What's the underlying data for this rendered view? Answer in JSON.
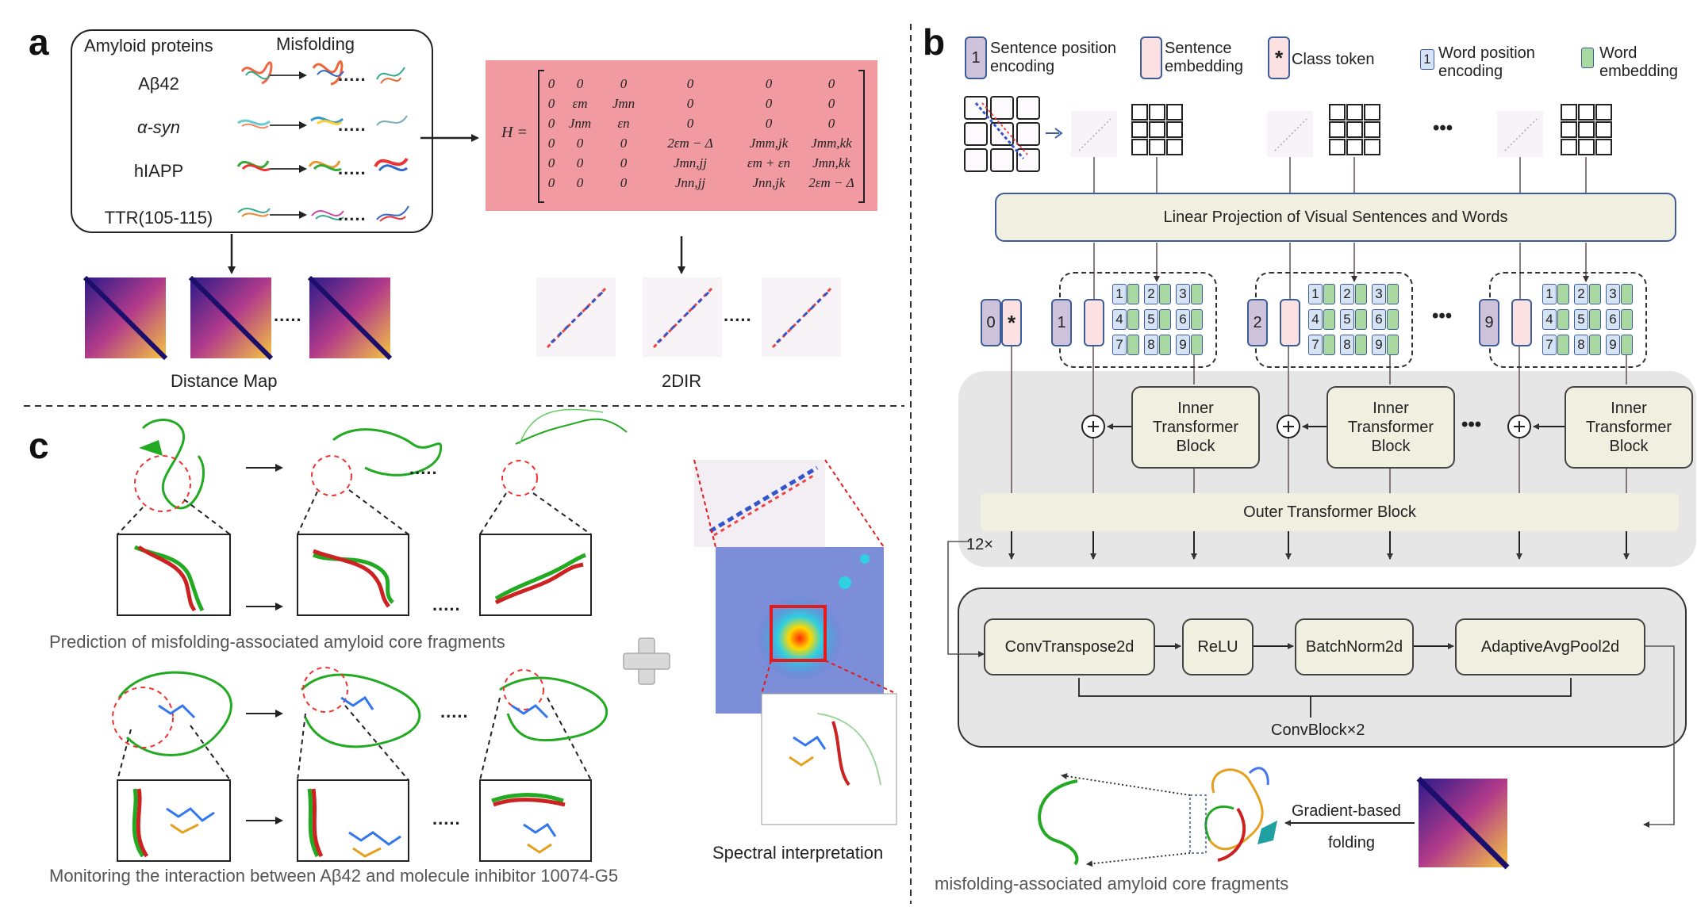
{
  "panel_labels": {
    "a": "a",
    "b": "b",
    "c": "c"
  },
  "panel_a": {
    "left_header": "Amyloid proteins",
    "right_header": "Misfolding",
    "proteins": [
      "Aβ42",
      "α-syn",
      "hIAPP",
      "TTR(105-115)"
    ],
    "dots": ".....",
    "distance_map_label": "Distance Map",
    "twodir_label": "2DIR",
    "matrix_lhs": "H =",
    "matrix_rows": [
      [
        "0",
        "0",
        "0",
        "0",
        "0",
        "0"
      ],
      [
        "0",
        "εm",
        "Jmn",
        "0",
        "0",
        "0"
      ],
      [
        "0",
        "Jnm",
        "εn",
        "0",
        "0",
        "0"
      ],
      [
        "0",
        "0",
        "0",
        "2εm − Δ",
        "Jmm,jk",
        "Jmm,kk"
      ],
      [
        "0",
        "0",
        "0",
        "Jmn,jj",
        "εm + εn",
        "Jmn,kk"
      ],
      [
        "0",
        "0",
        "0",
        "Jnn,jj",
        "Jnn,jk",
        "2εm − Δ"
      ]
    ]
  },
  "panel_b": {
    "legend": {
      "sentence_position": "Sentence position encoding",
      "sentence_position_num": "1",
      "sentence_embedding": "Sentence embedding",
      "class_token": "Class token",
      "class_token_symbol": "*",
      "word_position": "Word position encoding",
      "word_position_num": "1",
      "word_embedding": "Word embedding"
    },
    "ellipsis": "•••",
    "linear_projection": "Linear Projection of Visual Sentences and Words",
    "class_pos": "0",
    "class_sym": "*",
    "sentence_nums": [
      "1",
      "2",
      "9"
    ],
    "word_nums": [
      "1",
      "2",
      "3",
      "4",
      "5",
      "6",
      "7",
      "8",
      "9"
    ],
    "plus": "+",
    "inner_block": "Inner Transformer Block",
    "outer_block": "Outer Transformer Block",
    "repeat": "12×",
    "conv_blocks": [
      "ConvTranspose2d",
      "ReLU",
      "BatchNorm2d",
      "AdaptiveAvgPool2d"
    ],
    "conv_repeat": "ConvBlock×2",
    "gradient_label": "Gradient-based",
    "folding_label": "folding",
    "bottom_caption": "misfolding-associated amyloid core fragments"
  },
  "panel_c": {
    "caption_top": "Prediction of misfolding-associated amyloid core fragments",
    "caption_bottom": "Monitoring the interaction between Aβ42 and molecule inhibitor 10074-G5",
    "spectral_label": "Spectral interpretation",
    "dots": "....."
  },
  "colors": {
    "matrix_bg": "#f19aa1",
    "beige": "#f1efe0",
    "grey_panel": "#e6e6e6",
    "sentence_pos": "#cfc3dc",
    "sentence_emb": "#fbe1e1",
    "word_pos": "#d6e3f5",
    "word_emb": "#a9d8a0"
  }
}
